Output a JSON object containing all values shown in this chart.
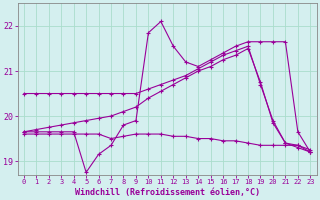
{
  "background_color": "#d4efef",
  "grid_color": "#aaddcc",
  "line_color": "#990099",
  "spine_color": "#888888",
  "xlim": [
    -0.5,
    23.5
  ],
  "ylim": [
    18.7,
    22.5
  ],
  "yticks": [
    19,
    20,
    21,
    22
  ],
  "xticks": [
    0,
    1,
    2,
    3,
    4,
    5,
    6,
    7,
    8,
    9,
    10,
    11,
    12,
    13,
    14,
    15,
    16,
    17,
    18,
    19,
    20,
    21,
    22,
    23
  ],
  "xlabel": "Windchill (Refroidissement éolien,°C)",
  "series": [
    {
      "x": [
        0,
        1,
        2,
        3,
        4,
        5,
        6,
        7,
        8,
        9,
        10,
        11,
        12,
        13,
        14,
        15,
        16,
        17,
        18,
        19,
        20,
        21,
        22,
        23
      ],
      "y": [
        20.5,
        20.5,
        20.5,
        20.5,
        20.5,
        20.5,
        20.5,
        20.5,
        20.5,
        20.5,
        20.6,
        20.7,
        20.8,
        20.9,
        21.05,
        21.2,
        21.35,
        21.45,
        21.55,
        20.7,
        19.9,
        19.4,
        19.35,
        19.2
      ]
    },
    {
      "x": [
        0,
        1,
        2,
        3,
        4,
        5,
        6,
        7,
        8,
        9,
        10,
        11,
        12,
        13,
        14,
        15,
        16,
        17,
        18,
        19,
        20,
        21,
        22,
        23
      ],
      "y": [
        19.6,
        19.6,
        19.6,
        19.6,
        19.6,
        19.6,
        19.6,
        19.5,
        19.55,
        19.6,
        19.6,
        19.6,
        19.55,
        19.55,
        19.5,
        19.5,
        19.45,
        19.45,
        19.4,
        19.35,
        19.35,
        19.35,
        19.35,
        19.25
      ]
    },
    {
      "x": [
        0,
        1,
        2,
        3,
        4,
        5,
        6,
        7,
        8,
        9,
        10,
        11,
        12,
        13,
        14,
        15,
        16,
        17,
        18,
        19,
        20,
        21,
        22,
        23
      ],
      "y": [
        19.65,
        19.65,
        19.65,
        19.65,
        19.65,
        18.75,
        19.15,
        19.35,
        19.8,
        19.9,
        21.85,
        22.1,
        21.55,
        21.2,
        21.1,
        21.25,
        21.4,
        21.55,
        21.65,
        21.65,
        21.65,
        21.65,
        19.65,
        19.2
      ]
    },
    {
      "x": [
        0,
        1,
        2,
        3,
        4,
        5,
        6,
        7,
        8,
        9,
        10,
        11,
        12,
        13,
        14,
        15,
        16,
        17,
        18,
        19,
        20,
        21,
        22,
        23
      ],
      "y": [
        19.65,
        19.7,
        19.75,
        19.8,
        19.85,
        19.9,
        19.95,
        20.0,
        20.1,
        20.2,
        20.4,
        20.55,
        20.7,
        20.85,
        21.0,
        21.1,
        21.25,
        21.35,
        21.5,
        20.75,
        19.85,
        19.4,
        19.3,
        19.2
      ]
    }
  ]
}
